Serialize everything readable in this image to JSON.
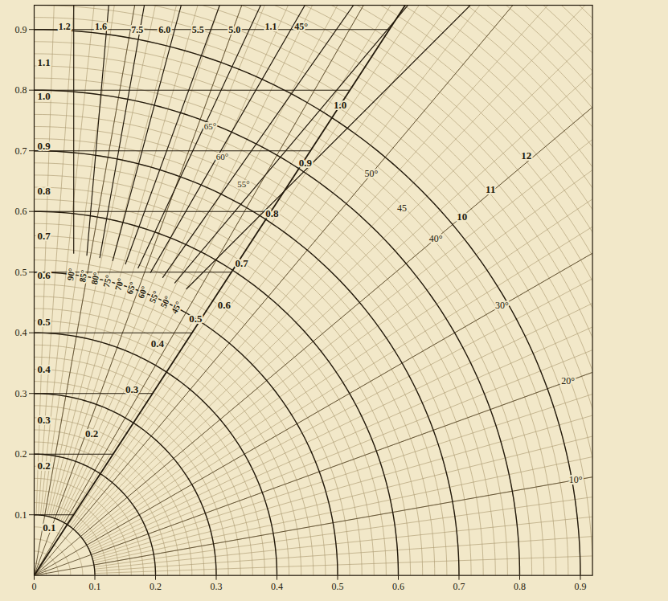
{
  "chart_data": {
    "type": "polar_grid",
    "xlim": [
      0,
      0.92
    ],
    "ylim": [
      0,
      0.94
    ],
    "xticks": [
      0,
      0.1,
      0.2,
      0.3,
      0.4,
      0.5,
      0.6,
      0.7,
      0.8,
      0.9
    ],
    "yticks": [
      0.1,
      0.2,
      0.3,
      0.4,
      0.5,
      0.6,
      0.7,
      0.8,
      0.9
    ],
    "grid": true,
    "vertical_scale": {
      "ticks": [
        0.2,
        0.3,
        0.4,
        0.5,
        0.6,
        0.7,
        0.8,
        0.9,
        {
          "value": 1,
          "label": "1.0"
        },
        1.1
      ],
      "y": [
        0.18,
        0.256,
        0.34,
        0.418,
        0.494,
        0.56,
        0.634,
        0.708,
        0.79,
        0.845
      ]
    },
    "diagonal_scale": {
      "ticks": [
        0.1,
        0.2,
        0.3,
        0.4,
        0.5,
        0.6,
        0.7,
        0.8,
        0.9,
        {
          "value": 1,
          "label": "1.0"
        }
      ],
      "x": [
        0.025,
        0.095,
        0.161,
        0.203,
        0.266,
        0.313,
        0.342,
        0.392,
        0.447,
        0.504
      ],
      "y": [
        0.078,
        0.233,
        0.306,
        0.382,
        0.423,
        0.446,
        0.515,
        0.597,
        0.68,
        0.775
      ]
    },
    "angle_scale": {
      "labels": [
        "45°",
        "50°",
        "55°",
        "60°",
        "65°",
        "70°",
        "75°",
        "80°",
        "85°",
        "90°"
      ],
      "values": [
        45,
        50,
        55,
        60,
        65,
        70,
        75,
        80,
        85,
        90
      ],
      "x": [
        0.2347,
        0.2166,
        0.198,
        0.1792,
        0.1601,
        0.1406,
        0.121,
        0.1011,
        0.0811,
        0.0609
      ],
      "y": [
        0.4415,
        0.4507,
        0.4591,
        0.4668,
        0.4737,
        0.4799,
        0.4851,
        0.4897,
        0.4934,
        0.4963
      ]
    },
    "outer_angle_scale": {
      "labels": [
        "50°",
        "45",
        "40°",
        "30°",
        "20°",
        "10°"
      ],
      "values": [
        50,
        45,
        40,
        30,
        20,
        10
      ],
      "r": [
        0.864,
        0.857,
        0.864,
        0.89,
        0.936,
        0.906
      ]
    },
    "outer_scale": {
      "ticks": [
        10,
        11,
        12
      ],
      "x": [
        0.705,
        0.752,
        0.811
      ],
      "y": [
        0.591,
        0.636,
        0.692
      ]
    },
    "top_labels": {
      "labels": [
        "1.2",
        "1.6",
        "7.5",
        "6.0",
        "5.5",
        "5.0",
        "1.1",
        "45°"
      ],
      "x": [
        0.05,
        0.11,
        0.17,
        0.215,
        0.27,
        0.33,
        0.39,
        0.44
      ],
      "y": [
        0.905,
        0.905,
        0.9,
        0.9,
        0.9,
        0.9,
        0.905,
        0.905
      ]
    },
    "inner_labels": {
      "labels": [
        "65°",
        "60°",
        "55°"
      ],
      "x": [
        0.29,
        0.31,
        0.345
      ],
      "y": [
        0.74,
        0.69,
        0.645
      ]
    }
  }
}
